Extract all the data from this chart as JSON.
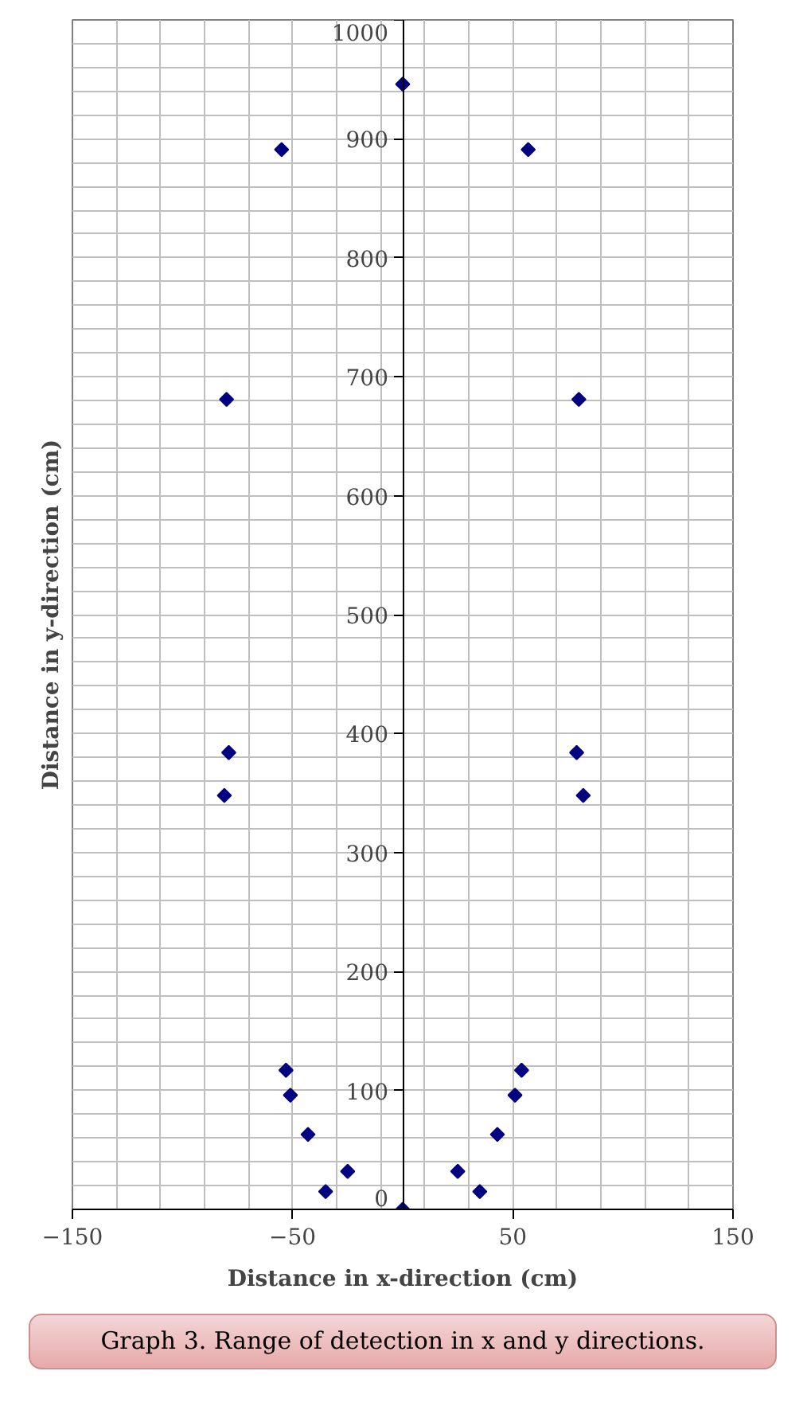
{
  "chart_data": {
    "type": "scatter",
    "xlabel": "Distance in x-direction (cm)",
    "ylabel": "Distance in y-direction (cm)",
    "annotations": [
      "Graph 3. Range of detection in x and y directions."
    ],
    "x": [
      0,
      -55,
      57,
      -80,
      80,
      -79,
      -81,
      79,
      82,
      -53,
      -51,
      -43,
      -25,
      -35,
      0,
      25,
      35,
      43,
      51,
      54
    ],
    "series": [
      {
        "color": "#000080",
        "values": [
          946,
          891,
          891,
          681,
          681,
          384,
          348,
          384,
          348,
          117,
          96,
          63,
          32,
          15,
          0,
          32,
          15,
          63,
          96,
          117
        ]
      }
    ],
    "marker": "diamond",
    "grid": true,
    "xlim": [
      -150,
      150
    ],
    "xticks": [
      -150,
      -50,
      50,
      150
    ],
    "ylim": [
      0,
      1000
    ],
    "yticks": [
      0,
      100,
      200,
      300,
      400,
      500,
      600,
      700,
      800,
      900,
      1000
    ]
  }
}
